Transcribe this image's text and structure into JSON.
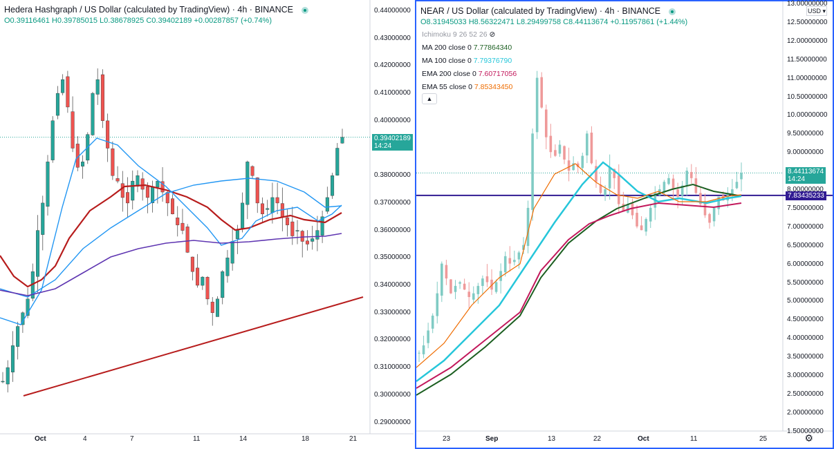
{
  "left": {
    "title": "Hedera Hashgraph / US Dollar (calculated by TradingView) · 4h · BINANCE",
    "ohlc": {
      "o": "O0.39116461",
      "h": "H0.39785015",
      "l": "L0.38678925",
      "c": "C0.39402189",
      "chg": "+0.00287857 (+0.74%)"
    },
    "price_axis": [
      "0.44000000",
      "0.43000000",
      "0.42000000",
      "0.41000000",
      "0.40000000",
      "0.39000000",
      "0.38000000",
      "0.37000000",
      "0.36000000",
      "0.35000000",
      "0.34000000",
      "0.33000000",
      "0.32000000",
      "0.31000000",
      "0.30000000",
      "0.29000000"
    ],
    "last_price": "0.39402189",
    "countdown": "14:24",
    "time_axis": [
      "Oct",
      "4",
      "7",
      "11",
      "14",
      "18",
      "21"
    ],
    "colors": {
      "up": "#26a69a",
      "down": "#ef5350",
      "ma_red": "#b71c1c",
      "ma_blue": "#2196f3",
      "ma_purple": "#5e35b1",
      "trend": "#b71c1c"
    }
  },
  "right": {
    "title": "NEAR / US Dollar (calculated by TradingView) · 4h · BINANCE",
    "ohlc": {
      "o": "O8.31945033",
      "h": "H8.56322471",
      "l": "L8.29499758",
      "c": "C8.44113674",
      "chg": "+0.11957861 (+1.44%)"
    },
    "indicators": [
      {
        "name": "Ichimoku 9 26 52 26",
        "value": "",
        "color": "#9598a1"
      },
      {
        "name": "MA 200 close 0",
        "value": "7.77864340",
        "color": "#1b5e20"
      },
      {
        "name": "MA 100 close 0",
        "value": "7.79376790",
        "color": "#26c6da"
      },
      {
        "name": "EMA 200 close 0",
        "value": "7.60717056",
        "color": "#c2185b"
      },
      {
        "name": "EMA 55 close 0",
        "value": "7.85343450",
        "color": "#ef6c00"
      }
    ],
    "currency": "USD",
    "price_axis": [
      "13.00000000",
      "12.50000000",
      "12.00000000",
      "11.50000000",
      "11.00000000",
      "10.50000000",
      "10.00000000",
      "9.50000000",
      "9.00000000",
      "8.50000000",
      "8.00000000",
      "7.50000000",
      "7.00000000",
      "6.50000000",
      "6.00000000",
      "5.50000000",
      "5.00000000",
      "4.50000000",
      "4.00000000",
      "3.50000000",
      "3.00000000",
      "2.50000000",
      "2.00000000",
      "1.50000000"
    ],
    "last_price": "8.44113674",
    "countdown": "14:24",
    "hline_price": "7.83435233",
    "time_axis": [
      "23",
      "Sep",
      "13",
      "22",
      "Oct",
      "11",
      "25"
    ],
    "colors": {
      "up": "#80cbc4",
      "down": "#ef9a9a",
      "hline": "#311b92"
    }
  }
}
